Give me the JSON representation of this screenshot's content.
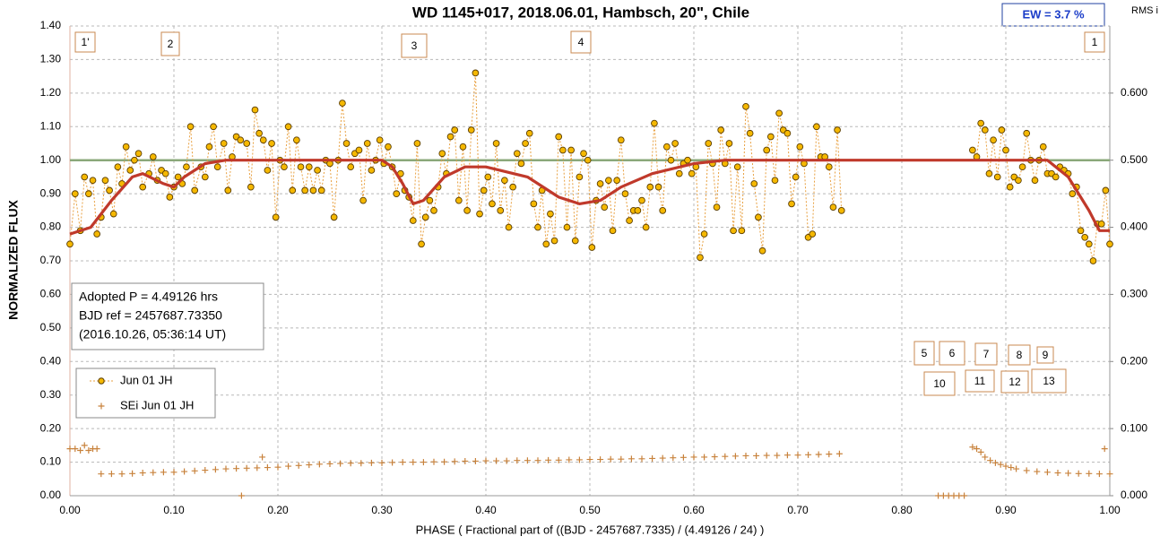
{
  "chart_data": {
    "type": "scatter",
    "title": "WD 1145+017, 2018.06.01, Hambsch, 20\", Chile",
    "xlabel": "PHASE  ( Fractional part of ((BJD - 2457687.7335)  / (4.49126  / 24) )",
    "ylabel": "NORMALIZED  FLUX",
    "y2label": "RMS i",
    "ew": "EW =  3.7 %",
    "info": [
      "Adopted P = 4.49126 hrs",
      "BJD ref = 2457687.73350",
      "(2016.10.26, 05:36:14 UT)"
    ],
    "annotations": [
      "1'",
      "2",
      "3",
      "4",
      "1",
      "5",
      "6",
      "7",
      "8",
      "9",
      "10",
      "11",
      "12",
      "13"
    ],
    "grid": true,
    "xlim": [
      0,
      1
    ],
    "ylim": [
      0,
      1.4
    ],
    "y2lim": [
      0,
      0.7
    ],
    "xticks": [
      {
        "value": 0,
        "label": "0.00"
      },
      {
        "value": 0.1,
        "label": "0.10"
      },
      {
        "value": 0.2,
        "label": "0.20"
      },
      {
        "value": 0.3,
        "label": "0.30"
      },
      {
        "value": 0.4,
        "label": "0.40"
      },
      {
        "value": 0.5,
        "label": "0.50"
      },
      {
        "value": 0.6,
        "label": "0.60"
      },
      {
        "value": 0.7,
        "label": "0.70"
      },
      {
        "value": 0.8,
        "label": "0.80"
      },
      {
        "value": 0.9,
        "label": "0.90"
      },
      {
        "value": 1,
        "label": "1.00"
      }
    ],
    "yticks": [
      {
        "value": 0,
        "label": "0.00"
      },
      {
        "value": 0.1,
        "label": "0.10"
      },
      {
        "value": 0.2,
        "label": "0.20"
      },
      {
        "value": 0.3,
        "label": "0.30"
      },
      {
        "value": 0.4,
        "label": "0.40"
      },
      {
        "value": 0.5,
        "label": "0.50"
      },
      {
        "value": 0.6,
        "label": "0.60"
      },
      {
        "value": 0.7,
        "label": "0.70"
      },
      {
        "value": 0.8,
        "label": "0.80"
      },
      {
        "value": 0.9,
        "label": "0.90"
      },
      {
        "value": 1,
        "label": "1.00"
      },
      {
        "value": 1.1,
        "label": "1.10"
      },
      {
        "value": 1.2,
        "label": "1.20"
      },
      {
        "value": 1.3,
        "label": "1.30"
      },
      {
        "value": 1.4,
        "label": "1.40"
      }
    ],
    "y2ticks": [
      {
        "value": 0,
        "label": "0.000"
      },
      {
        "value": 0.1,
        "label": "0.100"
      },
      {
        "value": 0.2,
        "label": "0.200"
      },
      {
        "value": 0.3,
        "label": "0.300"
      },
      {
        "value": 0.4,
        "label": "0.400"
      },
      {
        "value": 0.5,
        "label": "0.500"
      },
      {
        "value": 0.6,
        "label": "0.600"
      }
    ],
    "hline": {
      "value": 1,
      "color": "#8aa87a"
    },
    "series": [
      {
        "name": "Jun 01 JH",
        "color": "#f5b800",
        "marker": "circle",
        "x": [
          0,
          0.005,
          0.01,
          0.014,
          0.018,
          0.022,
          0.026,
          0.03,
          0.034,
          0.038,
          0.042,
          0.046,
          0.05,
          0.054,
          0.058,
          0.062,
          0.066,
          0.07,
          0.076,
          0.08,
          0.084,
          0.088,
          0.092,
          0.096,
          0.1,
          0.104,
          0.108,
          0.112,
          0.116,
          0.12,
          0.126,
          0.13,
          0.134,
          0.138,
          0.142,
          0.148,
          0.152,
          0.156,
          0.16,
          0.164,
          0.17,
          0.174,
          0.178,
          0.182,
          0.186,
          0.19,
          0.194,
          0.198,
          0.202,
          0.206,
          0.21,
          0.214,
          0.218,
          0.222,
          0.226,
          0.23,
          0.234,
          0.238,
          0.242,
          0.246,
          0.25,
          0.254,
          0.258,
          0.262,
          0.266,
          0.27,
          0.274,
          0.278,
          0.282,
          0.286,
          0.29,
          0.294,
          0.298,
          0.302,
          0.306,
          0.31,
          0.314,
          0.318,
          0.322,
          0.326,
          0.33,
          0.334,
          0.338,
          0.342,
          0.346,
          0.35,
          0.354,
          0.358,
          0.362,
          0.366,
          0.37,
          0.374,
          0.378,
          0.382,
          0.386,
          0.39,
          0.394,
          0.398,
          0.402,
          0.406,
          0.41,
          0.414,
          0.418,
          0.422,
          0.426,
          0.43,
          0.434,
          0.438,
          0.442,
          0.446,
          0.45,
          0.454,
          0.458,
          0.462,
          0.466,
          0.47,
          0.474,
          0.478,
          0.482,
          0.486,
          0.49,
          0.494,
          0.498,
          0.502,
          0.506,
          0.51,
          0.514,
          0.518,
          0.522,
          0.526,
          0.53,
          0.534,
          0.538,
          0.542,
          0.546,
          0.55,
          0.554,
          0.558,
          0.562,
          0.566,
          0.57,
          0.574,
          0.578,
          0.582,
          0.586,
          0.59,
          0.594,
          0.598,
          0.602,
          0.606,
          0.61,
          0.614,
          0.618,
          0.622,
          0.626,
          0.63,
          0.634,
          0.638,
          0.642,
          0.646,
          0.65,
          0.654,
          0.658,
          0.662,
          0.666,
          0.67,
          0.674,
          0.678,
          0.682,
          0.686,
          0.69,
          0.694,
          0.698,
          0.702,
          0.706,
          0.71,
          0.714,
          0.718,
          0.722,
          0.726,
          0.73,
          0.734,
          0.738,
          0.742,
          0.868,
          0.872,
          0.876,
          0.88,
          0.884,
          0.888,
          0.892,
          0.896,
          0.9,
          0.904,
          0.908,
          0.912,
          0.916,
          0.92,
          0.924,
          0.928,
          0.932,
          0.936,
          0.94,
          0.944,
          0.948,
          0.952,
          0.956,
          0.96,
          0.964,
          0.968,
          0.972,
          0.976,
          0.98,
          0.984,
          0.988,
          0.992,
          0.996,
          1
        ],
        "values": [
          0.75,
          0.9,
          0.79,
          0.95,
          0.9,
          0.94,
          0.78,
          0.83,
          0.94,
          0.91,
          0.84,
          0.98,
          0.93,
          1.04,
          0.97,
          1,
          1.02,
          0.92,
          0.96,
          1.01,
          0.94,
          0.97,
          0.96,
          0.89,
          0.92,
          0.95,
          0.93,
          0.98,
          1.1,
          0.91,
          0.98,
          0.95,
          1.04,
          1.1,
          0.98,
          1.05,
          0.91,
          1.01,
          1.07,
          1.06,
          1.05,
          0.92,
          1.15,
          1.08,
          1.06,
          0.97,
          1.05,
          0.83,
          1,
          0.98,
          1.1,
          0.91,
          1.06,
          0.98,
          0.91,
          0.98,
          0.91,
          0.97,
          0.91,
          1,
          0.99,
          0.83,
          1,
          1.17,
          1.05,
          0.98,
          1.02,
          1.03,
          0.88,
          1.05,
          0.97,
          1,
          1.06,
          0.99,
          1.04,
          0.98,
          0.9,
          0.96,
          0.91,
          0.89,
          0.82,
          1.05,
          0.75,
          0.83,
          0.88,
          0.85,
          0.92,
          1.02,
          0.96,
          1.07,
          1.09,
          0.88,
          1.04,
          0.85,
          1.09,
          1.26,
          0.84,
          0.91,
          0.95,
          0.87,
          1.05,
          0.85,
          0.94,
          0.8,
          0.92,
          1.02,
          0.99,
          1.05,
          1.08,
          0.87,
          0.8,
          0.91,
          0.75,
          0.84,
          0.76,
          1.07,
          1.03,
          0.8,
          1.03,
          0.76,
          0.95,
          1.02,
          1,
          0.74,
          0.88,
          0.93,
          0.86,
          0.94,
          0.79,
          0.94,
          1.06,
          0.9,
          0.82,
          0.85,
          0.85,
          0.88,
          0.8,
          0.92,
          1.11,
          0.92,
          0.85,
          1.04,
          1,
          1.05,
          0.96,
          0.99,
          1,
          0.96,
          0.98,
          0.71,
          0.78,
          1.05,
          0.99,
          0.86,
          1.09,
          0.99,
          1.05,
          0.79,
          0.98,
          0.79,
          1.16,
          1.08,
          0.93,
          0.83,
          0.73,
          1.03,
          1.07,
          0.94,
          1.14,
          1.09,
          1.08,
          0.87,
          0.95,
          1.04,
          0.99,
          0.77,
          0.78,
          1.1,
          1.01,
          1.01,
          0.98,
          0.86,
          1.09,
          0.85,
          1.03,
          1.01,
          1.11,
          1.09,
          0.96,
          1.06,
          0.95,
          1.09,
          1.03,
          0.92,
          0.95,
          0.94,
          0.98,
          1.08,
          1,
          0.94,
          1,
          1.04,
          0.96,
          0.96,
          0.95,
          0.98,
          0.97,
          0.96,
          0.9,
          0.92,
          0.79,
          0.77,
          0.75,
          0.7,
          0.81,
          0.81,
          0.91,
          0.75
        ]
      },
      {
        "name": "SEi Jun 01 JH",
        "color": "#c8823c",
        "marker": "plus",
        "x": [
          0,
          0.005,
          0.01,
          0.014,
          0.018,
          0.022,
          0.026,
          0.03,
          0.04,
          0.05,
          0.06,
          0.07,
          0.08,
          0.09,
          0.1,
          0.11,
          0.12,
          0.13,
          0.14,
          0.15,
          0.16,
          0.165,
          0.17,
          0.18,
          0.185,
          0.19,
          0.2,
          0.21,
          0.22,
          0.23,
          0.24,
          0.25,
          0.26,
          0.27,
          0.28,
          0.29,
          0.3,
          0.31,
          0.32,
          0.33,
          0.34,
          0.35,
          0.36,
          0.37,
          0.38,
          0.39,
          0.4,
          0.41,
          0.42,
          0.43,
          0.44,
          0.45,
          0.46,
          0.47,
          0.48,
          0.49,
          0.5,
          0.51,
          0.52,
          0.53,
          0.54,
          0.55,
          0.56,
          0.57,
          0.58,
          0.59,
          0.6,
          0.61,
          0.62,
          0.63,
          0.64,
          0.65,
          0.66,
          0.67,
          0.68,
          0.69,
          0.7,
          0.71,
          0.72,
          0.73,
          0.74,
          0.835,
          0.84,
          0.845,
          0.85,
          0.855,
          0.86,
          0.868,
          0.872,
          0.876,
          0.88,
          0.885,
          0.89,
          0.895,
          0.9,
          0.905,
          0.91,
          0.92,
          0.93,
          0.94,
          0.95,
          0.96,
          0.97,
          0.98,
          0.99,
          0.995,
          1
        ],
        "values": [
          0.14,
          0.14,
          0.135,
          0.15,
          0.135,
          0.14,
          0.14,
          0.065,
          0.065,
          0.065,
          0.066,
          0.068,
          0.069,
          0.07,
          0.07,
          0.072,
          0.074,
          0.076,
          0.078,
          0.08,
          0.081,
          0,
          0.082,
          0.083,
          0.115,
          0.084,
          0.085,
          0.088,
          0.09,
          0.092,
          0.094,
          0.095,
          0.096,
          0.097,
          0.097,
          0.098,
          0.098,
          0.099,
          0.1,
          0.1,
          0.1,
          0.101,
          0.101,
          0.102,
          0.103,
          0.103,
          0.104,
          0.104,
          0.104,
          0.105,
          0.105,
          0.105,
          0.106,
          0.106,
          0.107,
          0.107,
          0.108,
          0.108,
          0.109,
          0.109,
          0.11,
          0.11,
          0.111,
          0.112,
          0.113,
          0.114,
          0.115,
          0.115,
          0.116,
          0.117,
          0.118,
          0.119,
          0.119,
          0.12,
          0.12,
          0.121,
          0.121,
          0.122,
          0.123,
          0.124,
          0.125,
          0,
          0,
          0,
          0,
          0,
          0,
          0.145,
          0.14,
          0.13,
          0.115,
          0.105,
          0.098,
          0.093,
          0.088,
          0.084,
          0.08,
          0.075,
          0.072,
          0.07,
          0.068,
          0.067,
          0.066,
          0.066,
          0.065,
          0.14,
          0.065
        ]
      },
      {
        "color": "#c0392b",
        "marker": "line",
        "x": [
          0,
          0.02,
          0.04,
          0.06,
          0.07,
          0.09,
          0.1,
          0.11,
          0.13,
          0.15,
          0.3,
          0.31,
          0.32,
          0.33,
          0.34,
          0.36,
          0.38,
          0.4,
          0.44,
          0.47,
          0.49,
          0.51,
          0.53,
          0.56,
          0.6,
          0.63,
          0.94,
          0.96,
          0.98,
          0.99,
          1
        ],
        "values": [
          0.78,
          0.8,
          0.88,
          0.95,
          0.96,
          0.93,
          0.92,
          0.95,
          0.99,
          1,
          1,
          0.98,
          0.93,
          0.87,
          0.88,
          0.95,
          0.98,
          0.98,
          0.95,
          0.89,
          0.87,
          0.88,
          0.92,
          0.96,
          0.99,
          1,
          1,
          0.95,
          0.85,
          0.79,
          0.79
        ]
      }
    ]
  }
}
